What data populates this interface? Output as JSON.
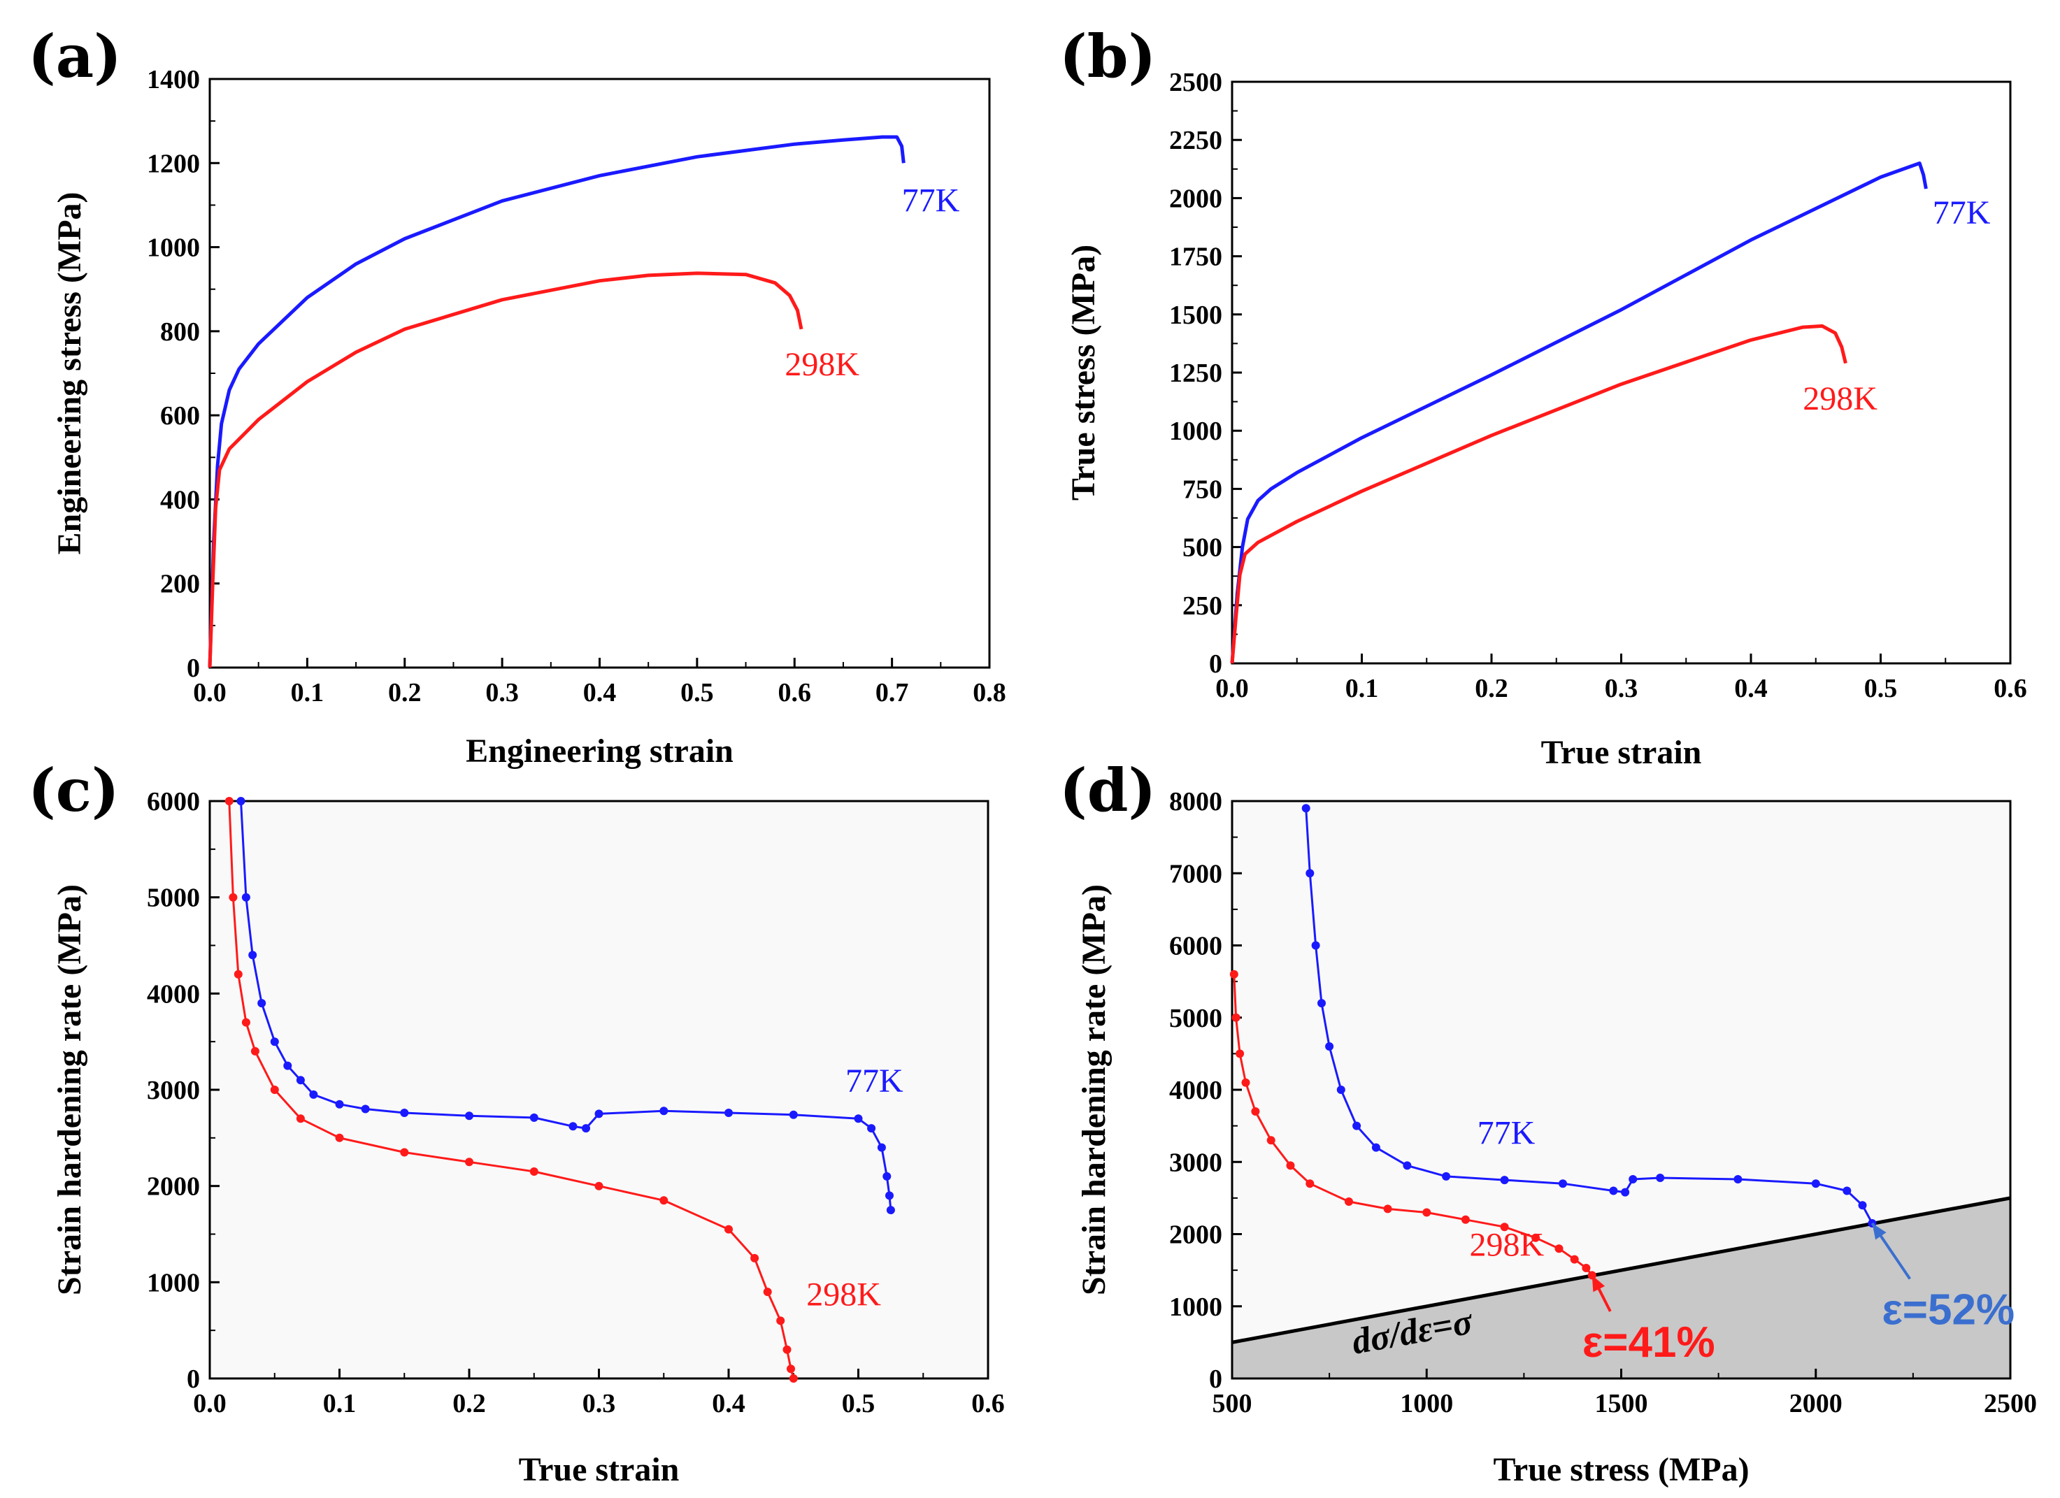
{
  "colors": {
    "cold": "#1a1aff",
    "room": "#ff1a1a",
    "hist_annot": "#3b6fcf",
    "shade": "#c8c8c8"
  },
  "chart_data": [
    {
      "id": "a",
      "panel": "(a)",
      "type": "line",
      "xlabel": "Engineering strain",
      "ylabel": "Engineering stress (MPa)",
      "xlim": [
        0,
        0.8
      ],
      "ylim": [
        0,
        1400
      ],
      "xticks": [
        "0.0",
        "0.1",
        "0.2",
        "0.3",
        "0.4",
        "0.5",
        "0.6",
        "0.7",
        "0.8"
      ],
      "yticks": [
        "0",
        "200",
        "400",
        "600",
        "800",
        "1000",
        "1200",
        "1400"
      ],
      "series": [
        {
          "name": "77K",
          "color": "#1a1aff",
          "x": [
            0,
            0.004,
            0.008,
            0.012,
            0.02,
            0.03,
            0.05,
            0.1,
            0.15,
            0.2,
            0.3,
            0.4,
            0.5,
            0.6,
            0.65,
            0.69,
            0.705,
            0.71,
            0.712
          ],
          "y": [
            0,
            300,
            480,
            580,
            660,
            710,
            770,
            880,
            960,
            1020,
            1110,
            1170,
            1215,
            1245,
            1255,
            1262,
            1262,
            1240,
            1200
          ]
        },
        {
          "name": "298K",
          "color": "#ff1a1a",
          "x": [
            0,
            0.003,
            0.006,
            0.01,
            0.02,
            0.05,
            0.1,
            0.15,
            0.2,
            0.3,
            0.4,
            0.45,
            0.5,
            0.55,
            0.58,
            0.595,
            0.603,
            0.607
          ],
          "y": [
            0,
            200,
            380,
            470,
            520,
            590,
            680,
            750,
            805,
            875,
            920,
            933,
            938,
            935,
            915,
            885,
            850,
            805
          ]
        }
      ],
      "labels": [
        {
          "text": "77K",
          "x": 0.71,
          "y": 1085,
          "color": "#1a1aff"
        },
        {
          "text": "298K",
          "x": 0.59,
          "y": 695,
          "color": "#ff1a1a"
        }
      ]
    },
    {
      "id": "b",
      "panel": "(b)",
      "type": "line",
      "xlabel": "True strain",
      "ylabel": "True stress (MPa)",
      "xlim": [
        0,
        0.6
      ],
      "ylim": [
        0,
        2500
      ],
      "xticks": [
        "0.0",
        "0.1",
        "0.2",
        "0.3",
        "0.4",
        "0.5",
        "0.6"
      ],
      "yticks": [
        "0",
        "250",
        "500",
        "750",
        "1000",
        "1250",
        "1500",
        "1750",
        "2000",
        "2250",
        "2500"
      ],
      "series": [
        {
          "name": "77K",
          "color": "#1a1aff",
          "x": [
            0,
            0.004,
            0.008,
            0.012,
            0.02,
            0.03,
            0.05,
            0.1,
            0.2,
            0.3,
            0.4,
            0.5,
            0.52,
            0.53,
            0.533,
            0.535
          ],
          "y": [
            0,
            300,
            500,
            620,
            700,
            750,
            820,
            970,
            1240,
            1520,
            1820,
            2090,
            2130,
            2150,
            2100,
            2040
          ]
        },
        {
          "name": "298K",
          "color": "#ff1a1a",
          "x": [
            0,
            0.003,
            0.006,
            0.01,
            0.02,
            0.05,
            0.1,
            0.2,
            0.3,
            0.4,
            0.44,
            0.455,
            0.465,
            0.47,
            0.473
          ],
          "y": [
            0,
            200,
            380,
            470,
            520,
            610,
            740,
            980,
            1200,
            1390,
            1445,
            1450,
            1420,
            1360,
            1290
          ]
        }
      ],
      "labels": [
        {
          "text": "77K",
          "x": 0.54,
          "y": 1890,
          "color": "#1a1aff"
        },
        {
          "text": "298K",
          "x": 0.44,
          "y": 1090,
          "color": "#ff1a1a"
        }
      ]
    },
    {
      "id": "c",
      "panel": "(c)",
      "type": "scatter",
      "xlabel": "True strain",
      "ylabel": "Strain hardening rate (MPa)",
      "xlim": [
        0,
        0.6
      ],
      "ylim": [
        0,
        6000
      ],
      "xticks": [
        "0.0",
        "0.1",
        "0.2",
        "0.3",
        "0.4",
        "0.5",
        "0.6"
      ],
      "yticks": [
        "0",
        "1000",
        "2000",
        "3000",
        "4000",
        "5000",
        "6000"
      ],
      "series": [
        {
          "name": "77K",
          "color": "#1a1aff",
          "x": [
            0.024,
            0.028,
            0.033,
            0.04,
            0.05,
            0.06,
            0.07,
            0.08,
            0.1,
            0.12,
            0.15,
            0.2,
            0.25,
            0.28,
            0.29,
            0.3,
            0.35,
            0.4,
            0.45,
            0.5,
            0.51,
            0.518,
            0.522,
            0.524,
            0.525
          ],
          "y": [
            6000,
            5000,
            4400,
            3900,
            3500,
            3250,
            3100,
            2950,
            2850,
            2800,
            2760,
            2730,
            2710,
            2620,
            2600,
            2750,
            2780,
            2760,
            2740,
            2700,
            2600,
            2400,
            2100,
            1900,
            1750
          ]
        },
        {
          "name": "298K",
          "color": "#ff1a1a",
          "x": [
            0.015,
            0.018,
            0.022,
            0.028,
            0.035,
            0.05,
            0.07,
            0.1,
            0.15,
            0.2,
            0.25,
            0.3,
            0.35,
            0.4,
            0.42,
            0.43,
            0.44,
            0.445,
            0.448,
            0.45
          ],
          "y": [
            6000,
            5000,
            4200,
            3700,
            3400,
            3000,
            2700,
            2500,
            2350,
            2250,
            2150,
            2000,
            1850,
            1550,
            1250,
            900,
            600,
            300,
            100,
            0
          ]
        }
      ],
      "labels": [
        {
          "text": "77K",
          "x": 0.49,
          "y": 2980,
          "color": "#1a1aff"
        },
        {
          "text": "298K",
          "x": 0.46,
          "y": 760,
          "color": "#ff1a1a"
        }
      ]
    },
    {
      "id": "d",
      "panel": "(d)",
      "type": "scatter",
      "xlabel": "True stress (MPa)",
      "ylabel": "Strain hardening rate (MPa)",
      "xlim": [
        500,
        2500
      ],
      "ylim": [
        0,
        8000
      ],
      "xticks": [
        "500",
        "1000",
        "1500",
        "2000",
        "2500"
      ],
      "yticks": [
        "0",
        "1000",
        "2000",
        "3000",
        "4000",
        "5000",
        "6000",
        "7000",
        "8000"
      ],
      "reference_line": {
        "label": "dσ/dε=σ",
        "x": [
          500,
          2500
        ],
        "y": [
          500,
          2500
        ]
      },
      "series": [
        {
          "name": "77K",
          "color": "#1a1aff",
          "x": [
            690,
            700,
            715,
            730,
            750,
            780,
            820,
            870,
            950,
            1050,
            1200,
            1350,
            1480,
            1510,
            1530,
            1600,
            1800,
            2000,
            2080,
            2120,
            2145
          ],
          "y": [
            7900,
            7000,
            6000,
            5200,
            4600,
            4000,
            3500,
            3200,
            2950,
            2800,
            2750,
            2700,
            2600,
            2580,
            2760,
            2780,
            2760,
            2700,
            2600,
            2400,
            2150
          ]
        },
        {
          "name": "298K",
          "color": "#ff1a1a",
          "x": [
            505,
            510,
            520,
            535,
            560,
            600,
            650,
            700,
            800,
            900,
            1000,
            1100,
            1200,
            1280,
            1340,
            1380,
            1410,
            1425
          ],
          "y": [
            5600,
            5000,
            4500,
            4100,
            3700,
            3300,
            2950,
            2700,
            2450,
            2350,
            2300,
            2200,
            2100,
            1950,
            1800,
            1650,
            1530,
            1430
          ]
        }
      ],
      "labels": [
        {
          "text": "77K",
          "x": 1130,
          "y": 3250,
          "color": "#1a1aff"
        },
        {
          "text": "298K",
          "x": 1110,
          "y": 1700,
          "color": "#ff1a1a"
        }
      ],
      "annotations": [
        {
          "text": "ε=41%",
          "x": 1400,
          "y": 300,
          "color": "#ff1a1a",
          "arrow_to": [
            1425,
            1430
          ]
        },
        {
          "text": "ε=52%",
          "x": 2170,
          "y": 750,
          "color": "#3b6fcf",
          "arrow_to": [
            2145,
            2150
          ]
        }
      ]
    }
  ]
}
